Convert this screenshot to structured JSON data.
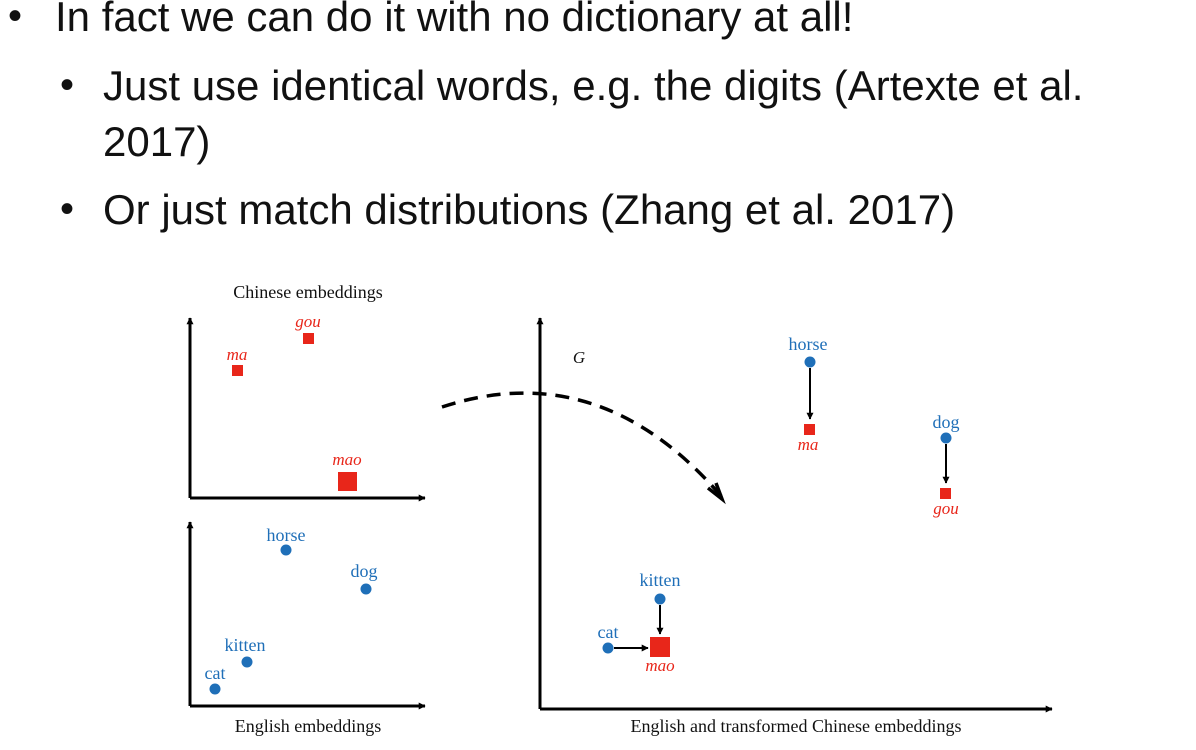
{
  "bullets": {
    "level1": "In fact we can do it with no dictionary at all!",
    "level2a_line1": "Just use identical words, e.g. the digits (Artexte et al.",
    "level2a_line2": "2017)",
    "level2b": "Or just match distributions (Zhang et al. 2017)"
  },
  "figure": {
    "chinese_panel_title": "Chinese embeddings",
    "english_panel_title": "English embeddings",
    "combined_panel_title": "English and transformed Chinese embeddings",
    "mapping_label": "G",
    "chinese_words": {
      "ma": "ma",
      "gou": "gou",
      "mao": "mao"
    },
    "english_words": {
      "horse": "horse",
      "dog": "dog",
      "kitten": "kitten",
      "cat": "cat"
    },
    "colors": {
      "english": "#1f6fb8",
      "chinese": "#e8261a",
      "axis": "#000000"
    }
  }
}
